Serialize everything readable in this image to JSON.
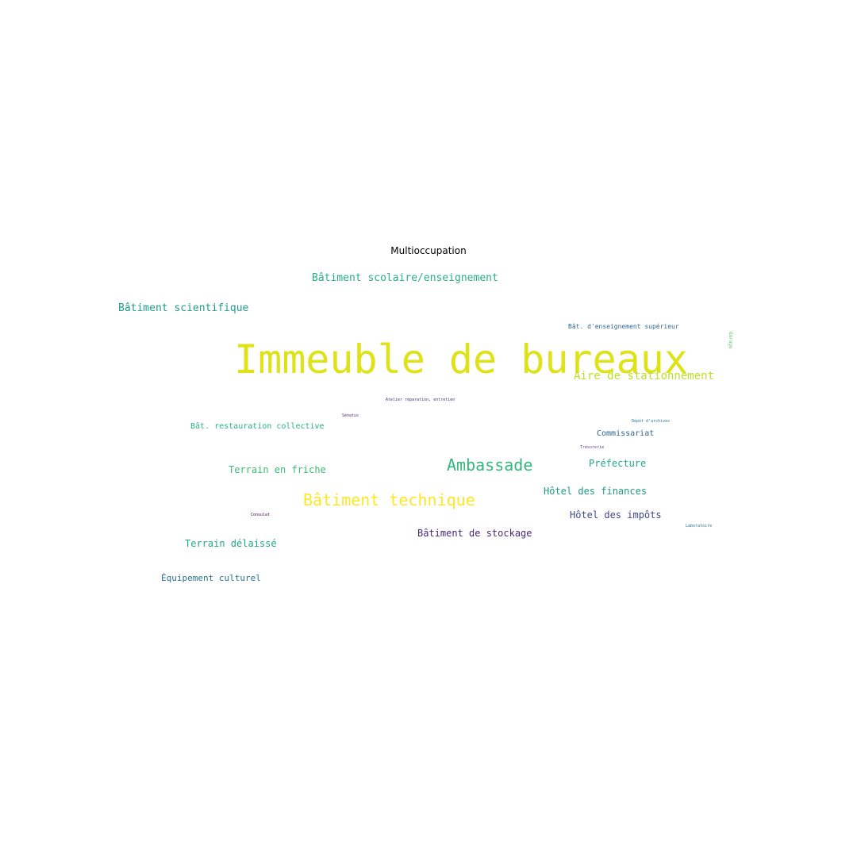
{
  "chart_data": {
    "type": "wordcloud",
    "title": "Multioccupation",
    "words": [
      {
        "text": "Immeuble de bureaux",
        "weight": 100,
        "color": "#dde318"
      },
      {
        "text": "Bâtiment technique",
        "weight": 40,
        "color": "#fde725"
      },
      {
        "text": "Ambassade",
        "weight": 40,
        "color": "#35b779"
      },
      {
        "text": "Aire de stationnement",
        "weight": 28,
        "color": "#bddf26"
      },
      {
        "text": "Bâtiment scolaire/enseignement",
        "weight": 26,
        "color": "#2ab07f"
      },
      {
        "text": "Bâtiment scientifique",
        "weight": 26,
        "color": "#1f9e89"
      },
      {
        "text": "Terrain en friche",
        "weight": 24,
        "color": "#3bbb75"
      },
      {
        "text": "Terrain délaissé",
        "weight": 24,
        "color": "#22a884"
      },
      {
        "text": "Hôtel des finances",
        "weight": 24,
        "color": "#1f9a8a"
      },
      {
        "text": "Hôtel des impôts",
        "weight": 24,
        "color": "#3e4a89"
      },
      {
        "text": "Bâtiment de stockage",
        "weight": 24,
        "color": "#482878"
      },
      {
        "text": "Préfecture",
        "weight": 24,
        "color": "#22a884"
      },
      {
        "text": "Équipement culturel",
        "weight": 22,
        "color": "#2c728e"
      },
      {
        "text": "Bât. restauration collective",
        "weight": 20,
        "color": "#29af7f"
      },
      {
        "text": "Commissariat",
        "weight": 20,
        "color": "#33638d"
      },
      {
        "text": "Bât. d'enseignement supérieur",
        "weight": 16,
        "color": "#31688e"
      },
      {
        "text": "Garage",
        "weight": 12,
        "color": "#5ec962",
        "vertical": true
      },
      {
        "text": "Dépôt d'archives",
        "weight": 10,
        "color": "#2a788e"
      },
      {
        "text": "Atelier réparation, entretien",
        "weight": 9,
        "color": "#46327e"
      },
      {
        "text": "Laboratoire",
        "weight": 9,
        "color": "#2a788e"
      },
      {
        "text": "Trésorerie",
        "weight": 8,
        "color": "#5c3e8b"
      },
      {
        "text": "Consulat",
        "weight": 8,
        "color": "#440154"
      },
      {
        "text": "Sénatus",
        "weight": 6,
        "color": "#472d7b"
      }
    ]
  }
}
